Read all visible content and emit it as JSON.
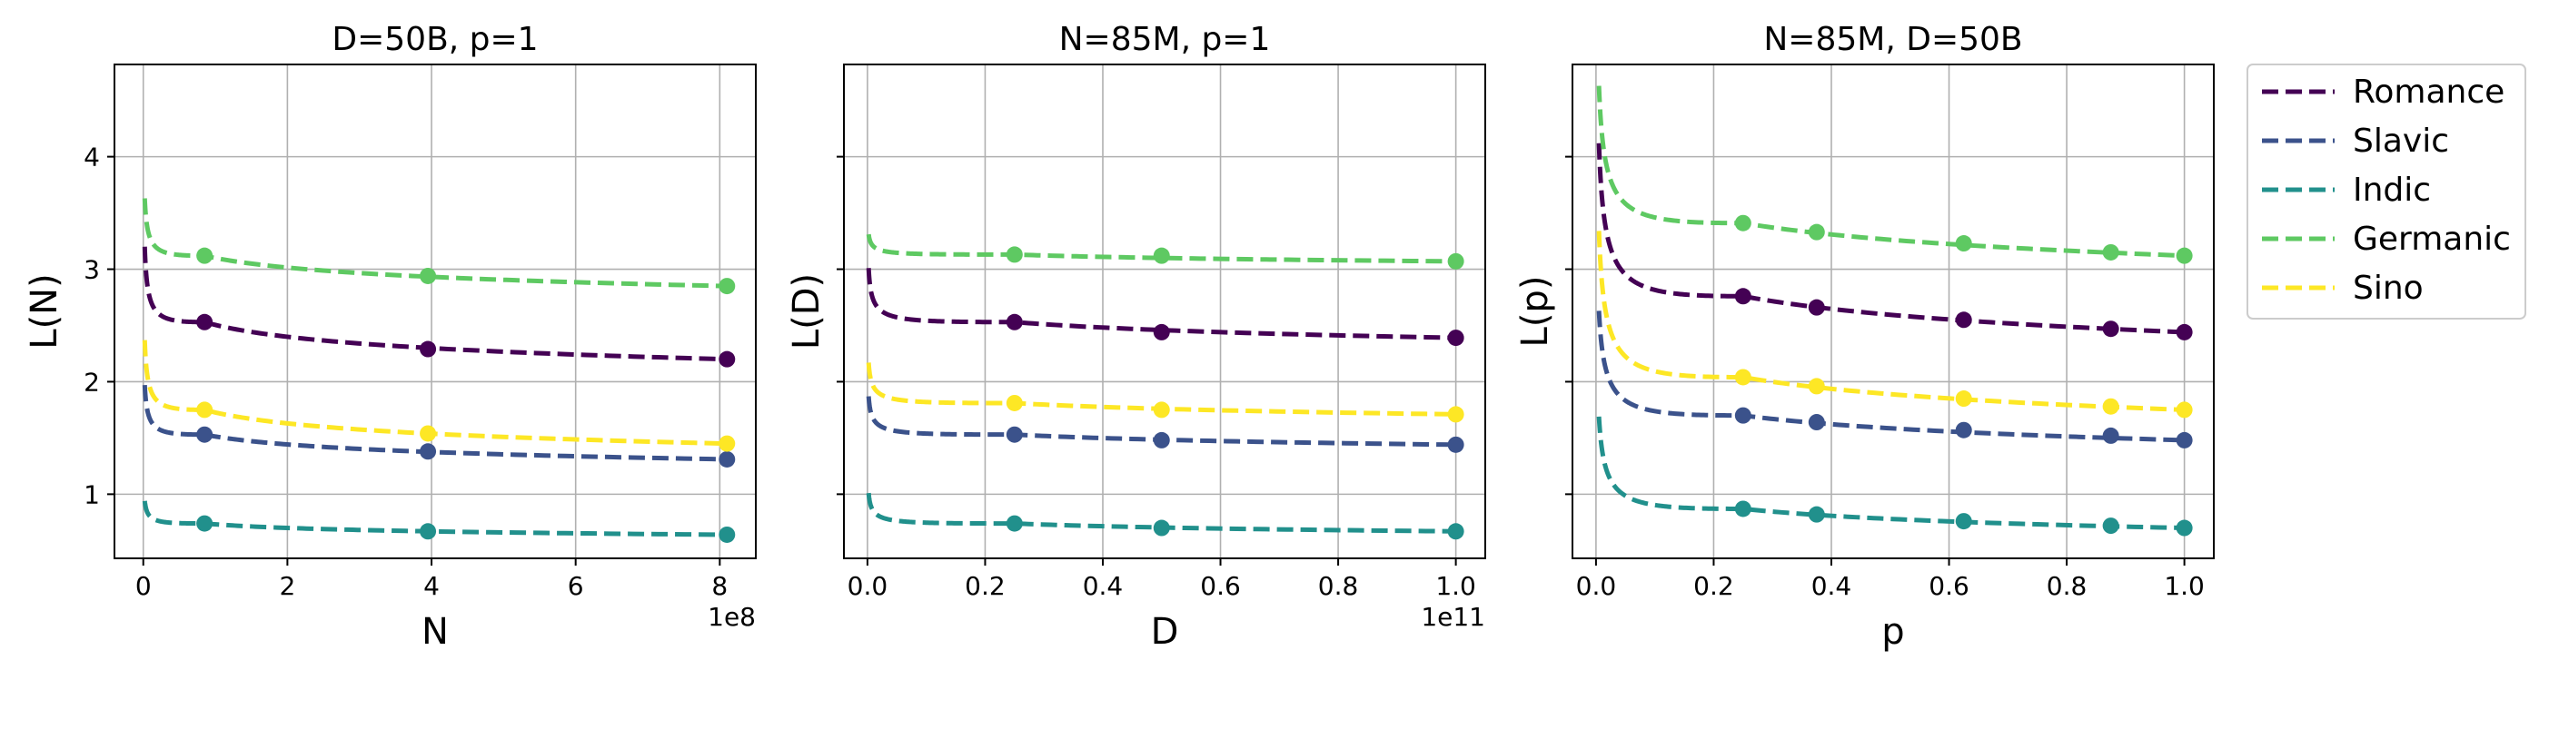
{
  "series_colors": {
    "Romance": "#440154",
    "Slavic": "#3b528b",
    "Indic": "#21908c",
    "Germanic": "#5ec962",
    "Sino": "#fde725"
  },
  "legend": {
    "placement": "outside-right",
    "entries": [
      "Romance",
      "Slavic",
      "Indic",
      "Germanic",
      "Sino"
    ]
  },
  "chart_data": [
    {
      "type": "line",
      "title": "D=50B, p=1",
      "xlabel": "N",
      "ylabel": "L(N)",
      "x_offset_label": "1e8",
      "xlim": [
        -0.4,
        8.5
      ],
      "ylim": [
        0.43,
        4.82
      ],
      "xticks": [
        0,
        2,
        4,
        6,
        8
      ],
      "yticks": [
        1,
        2,
        3,
        4
      ],
      "grid": true,
      "curve_x_start": 0.02,
      "curve_x_end": 8.1,
      "points_x": [
        0.85,
        3.95,
        8.1
      ],
      "series": [
        {
          "name": "Romance",
          "points_y": [
            2.53,
            2.29,
            2.2
          ],
          "curve_start_y": 3.2
        },
        {
          "name": "Slavic",
          "points_y": [
            1.53,
            1.38,
            1.31
          ],
          "curve_start_y": 1.97
        },
        {
          "name": "Indic",
          "points_y": [
            0.74,
            0.67,
            0.64
          ],
          "curve_start_y": 0.94
        },
        {
          "name": "Germanic",
          "points_y": [
            3.12,
            2.94,
            2.85
          ],
          "curve_start_y": 3.63
        },
        {
          "name": "Sino",
          "points_y": [
            1.75,
            1.54,
            1.45
          ],
          "curve_start_y": 2.37
        }
      ]
    },
    {
      "type": "line",
      "title": "N=85M, p=1",
      "xlabel": "D",
      "ylabel": "L(D)",
      "x_offset_label": "1e11",
      "xlim": [
        -0.04,
        1.05
      ],
      "ylim": [
        0.43,
        4.82
      ],
      "xticks": [
        0.0,
        0.2,
        0.4,
        0.6,
        0.8,
        1.0
      ],
      "yticks": [
        1,
        2,
        3,
        4
      ],
      "grid": true,
      "curve_x_start": 0.002,
      "curve_x_end": 1.0,
      "points_x": [
        0.25,
        0.5,
        1.0
      ],
      "series": [
        {
          "name": "Romance",
          "points_y": [
            2.53,
            2.44,
            2.39
          ],
          "curve_start_y": 3.01
        },
        {
          "name": "Slavic",
          "points_y": [
            1.53,
            1.48,
            1.44
          ],
          "curve_start_y": 1.87
        },
        {
          "name": "Indic",
          "points_y": [
            0.74,
            0.7,
            0.67
          ],
          "curve_start_y": 1.01
        },
        {
          "name": "Germanic",
          "points_y": [
            3.13,
            3.12,
            3.07
          ],
          "curve_start_y": 3.31
        },
        {
          "name": "Sino",
          "points_y": [
            1.81,
            1.75,
            1.71
          ],
          "curve_start_y": 2.17
        }
      ]
    },
    {
      "type": "line",
      "title": "N=85M, D=50B",
      "xlabel": "p",
      "ylabel": "L(p)",
      "x_offset_label": "",
      "xlim": [
        -0.04,
        1.05
      ],
      "ylim": [
        0.43,
        4.82
      ],
      "xticks": [
        0.0,
        0.2,
        0.4,
        0.6,
        0.8,
        1.0
      ],
      "yticks": [
        1,
        2,
        3,
        4
      ],
      "grid": true,
      "curve_x_start": 0.005,
      "curve_x_end": 1.0,
      "points_x": [
        0.25,
        0.375,
        0.625,
        0.875,
        1.0
      ],
      "series": [
        {
          "name": "Romance",
          "points_y": [
            2.76,
            2.66,
            2.55,
            2.47,
            2.44
          ],
          "curve_start_y": 4.12
        },
        {
          "name": "Slavic",
          "points_y": [
            1.7,
            1.64,
            1.57,
            1.52,
            1.48
          ],
          "curve_start_y": 2.63
        },
        {
          "name": "Indic",
          "points_y": [
            0.87,
            0.82,
            0.76,
            0.72,
            0.7
          ],
          "curve_start_y": 1.69
        },
        {
          "name": "Germanic",
          "points_y": [
            3.41,
            3.33,
            3.23,
            3.15,
            3.12
          ],
          "curve_start_y": 4.63
        },
        {
          "name": "Sino",
          "points_y": [
            2.04,
            1.96,
            1.85,
            1.78,
            1.75
          ],
          "curve_start_y": 3.34
        }
      ]
    }
  ]
}
